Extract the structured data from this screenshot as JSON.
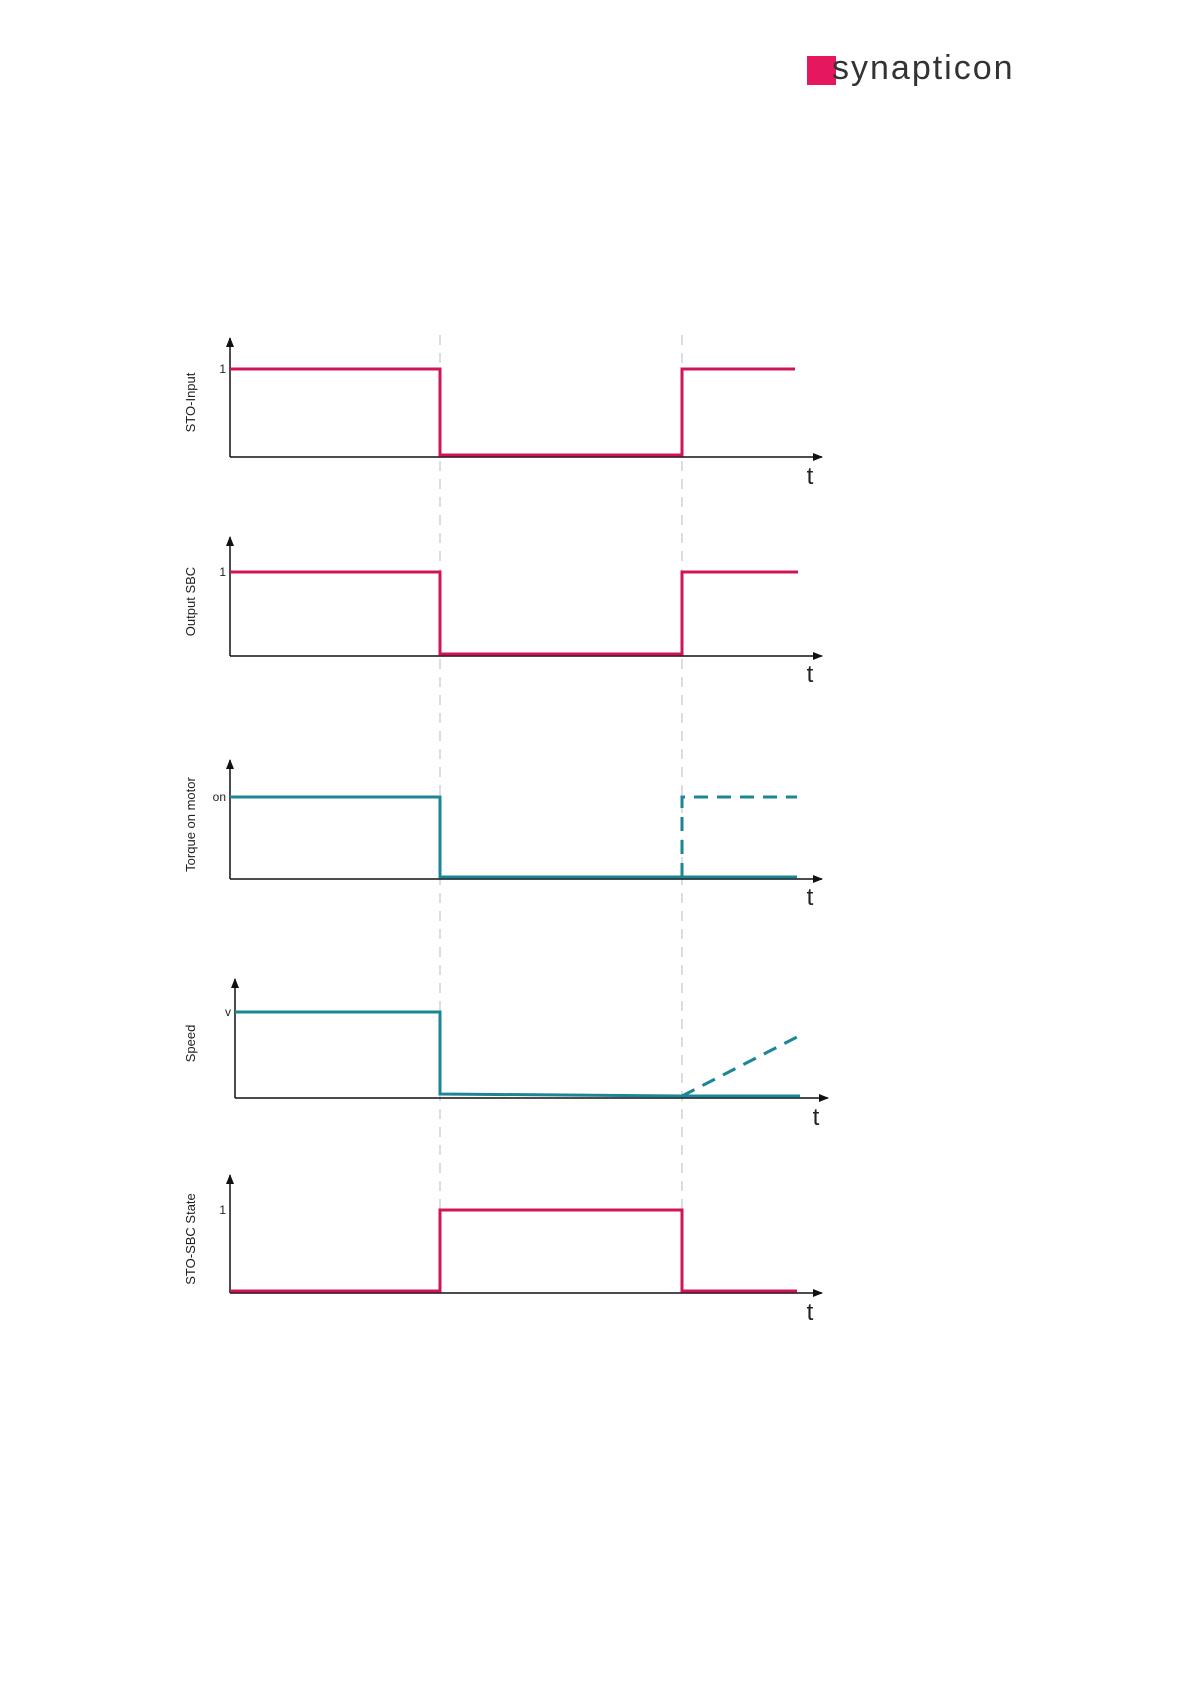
{
  "header": {
    "logo": "synapticon"
  },
  "panels": [
    {
      "ylabel": "STO-Input",
      "tick": "1",
      "xlabel": "t"
    },
    {
      "ylabel": "Output SBC",
      "tick": "1",
      "xlabel": "t"
    },
    {
      "ylabel": "Torque on motor",
      "tick": "on",
      "xlabel": "t"
    },
    {
      "ylabel": "Speed",
      "tick": "v",
      "xlabel": "t"
    },
    {
      "ylabel": "STO-SBC State",
      "tick": "1",
      "xlabel": "t"
    }
  ]
}
